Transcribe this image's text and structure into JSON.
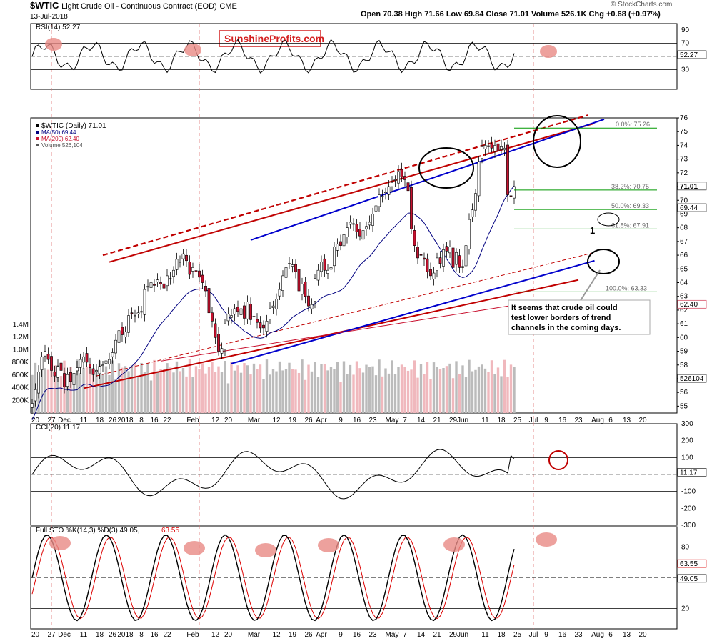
{
  "header": {
    "symbol": "$WTIC",
    "name": "Light Crude Oil - Continuous Contract (EOD)",
    "exchange": "CME",
    "date": "13-Jul-2018",
    "ohlc": "Open 70.38  High 71.66  Low 69.84  Close 71.01  Volume 526.1K  Chg +0.68 (+0.97%)",
    "credit": "© StockCharts.com"
  },
  "watermark": "SunshineProfits.com",
  "annotation": "It seems that crude oil could test lower borders of trend channels in the coming days.",
  "annotation_lines": [
    "It seems that crude oil could",
    "test lower borders of trend",
    "channels in the coming days."
  ],
  "marker_label": "1",
  "colors": {
    "up": "#ffffff",
    "down": "#c8102e",
    "trend_blue": "#0000cc",
    "trend_red": "#c00000",
    "ma50": "#000080",
    "ma200": "#c8102e",
    "fib": "#009900",
    "vol_up": "#bbbbbb",
    "vol_down": "#f0b8bd",
    "osc_fill": "#4f7f4f",
    "osc_fill_neg": "#8b4040",
    "highlight": "#e88a84",
    "watermark": "#d42020"
  },
  "chart_data": [
    {
      "type": "line",
      "title": "RSI(14) 52.27",
      "current": "52.27",
      "ylim": [
        0,
        100
      ],
      "ticks": [
        "90",
        "70",
        "30"
      ],
      "levels": [
        70,
        50,
        30
      ]
    },
    {
      "type": "candlestick",
      "title": "$WTIC (Daily) 71.01",
      "legend": [
        "$WTIC (Daily) 71.01",
        "MA(50) 69.44",
        "MA(200) 62.40",
        "Volume 526,104"
      ],
      "ylim": [
        54.5,
        76
      ],
      "yticks": [
        "55",
        "56",
        "57",
        "58",
        "59",
        "60",
        "61",
        "62",
        "63",
        "64",
        "65",
        "66",
        "67",
        "68",
        "69",
        "70",
        "71",
        "72",
        "73",
        "74",
        "75",
        "76"
      ],
      "volume_ticks": [
        "200K",
        "400K",
        "600K",
        "800K",
        "1.0M",
        "1.2M",
        "1.4M"
      ],
      "current_labels": [
        "71.01",
        "69.44",
        "62.40",
        "526104"
      ],
      "fibonacci": [
        {
          "label": "0.0%: 75.26",
          "value": 75.26
        },
        {
          "label": "38.2%: 70.75",
          "value": 70.75
        },
        {
          "label": "50.0%: 69.33",
          "value": 69.33
        },
        {
          "label": "61.8%: 67.91",
          "value": 67.91
        },
        {
          "label": "100.0%: 63.33",
          "value": 63.33
        }
      ],
      "closes": [
        55.2,
        56.2,
        57.5,
        58.6,
        59.0,
        58.4,
        57.6,
        57.2,
        57.9,
        57.6,
        56.4,
        57.3,
        56.8,
        57.4,
        57.8,
        58.4,
        58.6,
        58.2,
        57.8,
        57.3,
        57.6,
        57.9,
        58.0,
        58.3,
        58.4,
        58.9,
        59.8,
        60.5,
        60.2,
        60.4,
        61.6,
        61.8,
        61.6,
        61.8,
        61.9,
        63.5,
        63.7,
        64.0,
        63.8,
        64.2,
        63.9,
        63.6,
        64.5,
        64.3,
        64.9,
        65.7,
        65.5,
        66.1,
        65.6,
        64.6,
        65.1,
        64.8,
        64.4,
        64.0,
        63.4,
        61.8,
        61.2,
        60.0,
        59.0,
        59.2,
        61.0,
        61.7,
        61.6,
        62.1,
        61.9,
        62.1,
        61.4,
        62.6,
        61.3,
        61.5,
        61.1,
        60.7,
        60.7,
        61.2,
        62.1,
        62.3,
        62.8,
        63.5,
        64.5,
        65.1,
        65.4,
        65.3,
        64.8,
        63.4,
        63.9,
        63.0,
        62.3,
        62.4,
        64.3,
        64.9,
        65.5,
        64.9,
        64.9,
        65.1,
        66.6,
        66.8,
        66.7,
        67.5,
        68.0,
        68.4,
        68.3,
        67.7,
        67.4,
        67.8,
        68.1,
        68.4,
        69.0,
        69.6,
        70.4,
        70.3,
        70.6,
        71.0,
        71.3,
        71.5,
        72.1,
        71.7,
        71.5,
        70.7,
        67.9,
        66.7,
        65.8,
        66.0,
        65.7,
        64.8,
        64.5,
        64.7,
        65.8,
        65.4,
        66.4,
        66.3,
        66.6,
        65.1,
        66.2,
        65.1,
        65.1,
        66.7,
        68.6,
        69.3,
        70.5,
        72.8,
        73.9,
        74.0,
        73.9,
        73.8,
        74.0,
        73.6,
        73.9,
        73.8,
        70.4,
        70.3,
        71.0
      ],
      "ma50_end": 69.44,
      "ma200_end": 62.4
    },
    {
      "type": "line",
      "title": "CCI(20) 11.17",
      "current": "11.17",
      "ylim": [
        -300,
        300
      ],
      "ticks": [
        "300",
        "200",
        "100",
        "-100",
        "-200",
        "-300"
      ],
      "levels": [
        100,
        0,
        -100
      ]
    },
    {
      "type": "line",
      "title": "Full STO %K(14,3) %D(3) 49.05, 63.55",
      "legend_k": "Full STO %K(14,3) %D(3) 49.05,",
      "legend_d": "63.55",
      "current": [
        "63.55",
        "49.05"
      ],
      "ylim": [
        0,
        100
      ],
      "ticks": [
        "80",
        "20"
      ],
      "levels": [
        80,
        50,
        20
      ]
    }
  ],
  "x_axis": {
    "labels": [
      {
        "t": "20",
        "d": 1
      },
      {
        "t": "27",
        "d": 6
      },
      {
        "t": "Dec",
        "d": 10
      },
      {
        "t": "11",
        "d": 16
      },
      {
        "t": "18",
        "d": 21
      },
      {
        "t": "26",
        "d": 25
      },
      {
        "t": "2018",
        "d": 29
      },
      {
        "t": "8",
        "d": 34
      },
      {
        "t": "16",
        "d": 38
      },
      {
        "t": "22",
        "d": 42
      },
      {
        "t": "Feb",
        "d": 50
      },
      {
        "t": "12",
        "d": 57
      },
      {
        "t": "20",
        "d": 61
      },
      {
        "t": "Mar",
        "d": 69
      },
      {
        "t": "12",
        "d": 76
      },
      {
        "t": "19",
        "d": 81
      },
      {
        "t": "26",
        "d": 86
      },
      {
        "t": "Apr",
        "d": 90
      },
      {
        "t": "9",
        "d": 96
      },
      {
        "t": "16",
        "d": 101
      },
      {
        "t": "23",
        "d": 106
      },
      {
        "t": "May",
        "d": 112
      },
      {
        "t": "7",
        "d": 116
      },
      {
        "t": "14",
        "d": 121
      },
      {
        "t": "21",
        "d": 126
      },
      {
        "t": "29",
        "d": 131
      },
      {
        "t": "Jun",
        "d": 134
      },
      {
        "t": "11",
        "d": 141
      },
      {
        "t": "18",
        "d": 146
      },
      {
        "t": "25",
        "d": 151
      },
      {
        "t": "Jul",
        "d": 156
      },
      {
        "t": "9",
        "d": 160
      },
      {
        "t": "16",
        "d": 165
      },
      {
        "t": "23",
        "d": 170
      },
      {
        "t": "Aug",
        "d": 176
      },
      {
        "t": "6",
        "d": 180
      },
      {
        "t": "13",
        "d": 185
      },
      {
        "t": "20",
        "d": 190
      }
    ]
  }
}
